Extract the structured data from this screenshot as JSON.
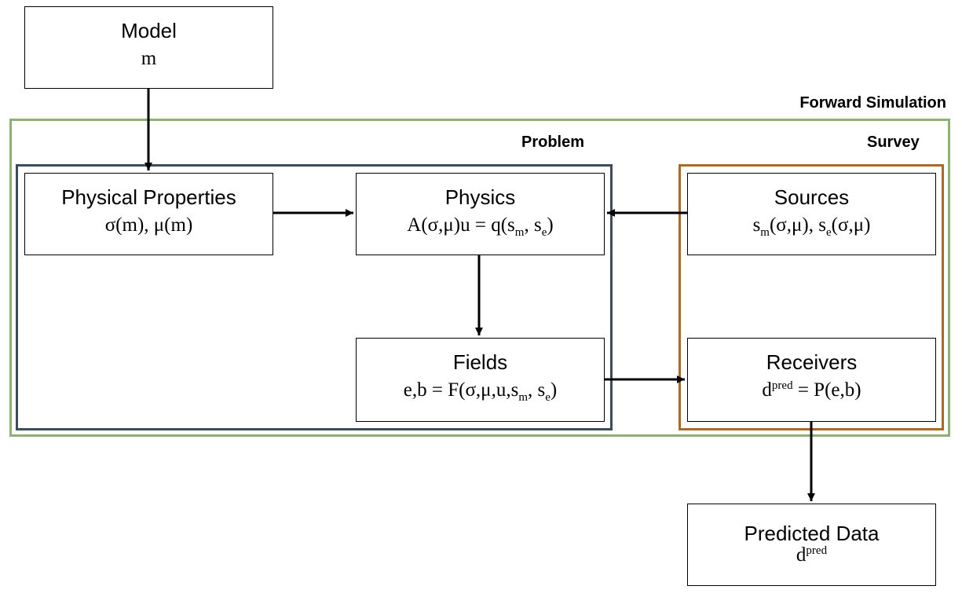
{
  "groups": {
    "forward_simulation": "Forward Simulation",
    "problem": "Problem",
    "survey": "Survey"
  },
  "model": {
    "title": "Model",
    "eq": "m"
  },
  "physical_properties": {
    "title": "Physical Properties",
    "eq": "σ(m), μ(m)"
  },
  "physics": {
    "title": "Physics",
    "eq_a": "A(σ,μ)u = q(s",
    "sub_m": "m",
    "eq_b": ", s",
    "sub_e": "e",
    "eq_c": ")"
  },
  "fields": {
    "title": "Fields",
    "eq_a": "e,b = F(σ,μ,u,s",
    "sub_m": "m",
    "eq_b": ", s",
    "sub_e": "e",
    "eq_c": ")"
  },
  "sources": {
    "title": "Sources",
    "eq_a": "s",
    "sub_m": "m",
    "eq_b": "(σ,μ), s",
    "sub_e": "e",
    "eq_c": "(σ,μ)"
  },
  "receivers": {
    "title": "Receivers",
    "eq_a": "d",
    "sup": "pred",
    "eq_b": " = P(e,b)"
  },
  "predicted_data": {
    "title": "Predicted Data",
    "eq_a": "d",
    "sup": "pred"
  },
  "colors": {
    "forward_simulation_border": "#8bb174",
    "problem_border": "#3b4d5c",
    "survey_border": "#a86a28",
    "box_border": "#000000",
    "arrow": "#000000"
  }
}
